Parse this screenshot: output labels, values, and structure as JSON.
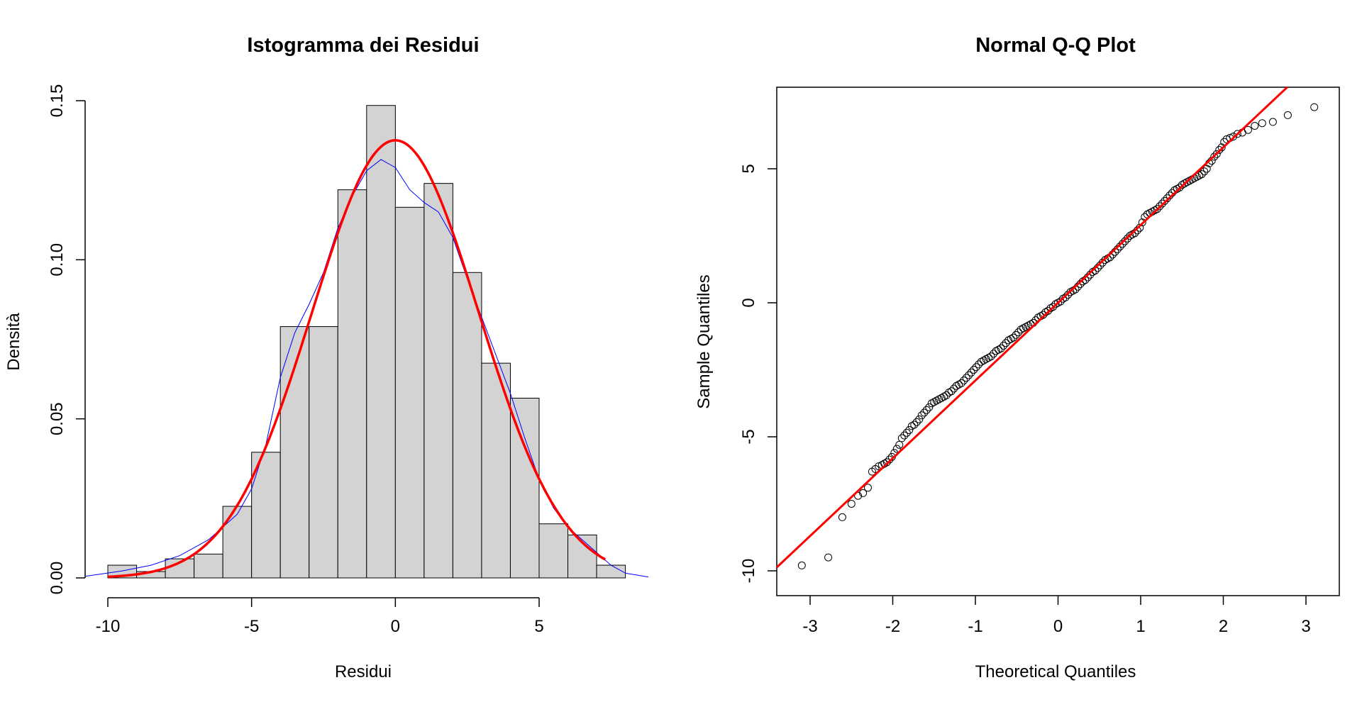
{
  "chart_data": [
    {
      "type": "histogram",
      "title": "Istogramma dei Residui",
      "xlabel": "Residui",
      "ylabel": "Densità",
      "xlim": [
        -10,
        8
      ],
      "ylim": [
        0,
        0.15
      ],
      "x_ticks": [
        -10,
        -5,
        0,
        5
      ],
      "x_tick_labels": [
        "-10",
        "-5",
        "0",
        "5"
      ],
      "y_ticks": [
        0,
        0.05,
        0.1,
        0.15
      ],
      "y_tick_labels": [
        "0.00",
        "0.05",
        "0.10",
        "0.15"
      ],
      "bins": [
        -10,
        -9,
        -8,
        -7,
        -6,
        -5,
        -4,
        -3,
        -2,
        -1,
        0,
        1,
        2,
        3,
        4,
        5,
        6,
        7,
        8
      ],
      "densities": [
        0.004,
        0.002,
        0.006,
        0.0075,
        0.0225,
        0.0395,
        0.079,
        0.079,
        0.122,
        0.1485,
        0.1165,
        0.124,
        0.096,
        0.0675,
        0.0565,
        0.017,
        0.0135,
        0.004
      ],
      "bar_color": "#d3d3d3",
      "normal_curve": {
        "mean": 0.0,
        "sd": 2.9,
        "color": "#ff0000",
        "x_range": [
          -10,
          7.3
        ]
      },
      "density_curve": {
        "color": "#0000ff",
        "points": [
          [
            -10.8,
            0.0005
          ],
          [
            -9.5,
            0.0022
          ],
          [
            -8.5,
            0.004
          ],
          [
            -7.5,
            0.007
          ],
          [
            -6.5,
            0.012
          ],
          [
            -5.5,
            0.02
          ],
          [
            -5,
            0.028
          ],
          [
            -4.5,
            0.042
          ],
          [
            -4,
            0.063
          ],
          [
            -3.5,
            0.077
          ],
          [
            -3,
            0.086
          ],
          [
            -2.5,
            0.096
          ],
          [
            -2,
            0.11
          ],
          [
            -1.5,
            0.12
          ],
          [
            -1,
            0.128
          ],
          [
            -0.5,
            0.1315
          ],
          [
            0,
            0.129
          ],
          [
            0.5,
            0.122
          ],
          [
            1,
            0.118
          ],
          [
            1.5,
            0.115
          ],
          [
            2,
            0.107
          ],
          [
            2.5,
            0.094
          ],
          [
            3,
            0.082
          ],
          [
            3.5,
            0.07
          ],
          [
            4,
            0.058
          ],
          [
            4.5,
            0.044
          ],
          [
            5,
            0.031
          ],
          [
            5.5,
            0.022
          ],
          [
            6,
            0.016
          ],
          [
            6.5,
            0.012
          ],
          [
            7,
            0.008
          ],
          [
            7.5,
            0.004
          ],
          [
            8,
            0.0015
          ],
          [
            8.8,
            0.0003
          ]
        ]
      }
    },
    {
      "type": "scatter",
      "title": "Normal Q-Q Plot",
      "xlabel": "Theoretical Quantiles",
      "ylabel": "Sample Quantiles",
      "xlim": [
        -3.2,
        3.2
      ],
      "ylim": [
        -10.3,
        7.8
      ],
      "x_ticks": [
        -3,
        -2,
        -1,
        0,
        1,
        2,
        3
      ],
      "x_tick_labels": [
        "-3",
        "-2",
        "-1",
        "0",
        "1",
        "2",
        "3"
      ],
      "y_ticks": [
        -10,
        -5,
        0,
        5
      ],
      "y_tick_labels": [
        "-10",
        "-5",
        "0",
        "5"
      ],
      "reference_line": {
        "intercept": 0,
        "slope": 2.9,
        "color": "#ff0000"
      },
      "x": [
        -3.1,
        -2.78,
        -2.61,
        -2.5,
        -2.42,
        -2.36,
        -2.3,
        -2.25,
        -2.21,
        -2.17,
        -2.13,
        -2.1,
        -2.07,
        -2.04,
        -2.01,
        -1.98,
        -1.95,
        -1.92,
        -1.89,
        -1.86,
        -1.83,
        -1.8,
        -1.77,
        -1.74,
        -1.71,
        -1.68,
        -1.65,
        -1.62,
        -1.59,
        -1.56,
        -1.53,
        -1.5,
        -1.47,
        -1.44,
        -1.41,
        -1.38,
        -1.35,
        -1.32,
        -1.29,
        -1.26,
        -1.23,
        -1.2,
        -1.17,
        -1.14,
        -1.11,
        -1.08,
        -1.05,
        -1.02,
        -0.99,
        -0.96,
        -0.93,
        -0.9,
        -0.87,
        -0.84,
        -0.81,
        -0.78,
        -0.75,
        -0.72,
        -0.69,
        -0.66,
        -0.63,
        -0.6,
        -0.57,
        -0.54,
        -0.51,
        -0.48,
        -0.45,
        -0.42,
        -0.39,
        -0.36,
        -0.33,
        -0.3,
        -0.27,
        -0.24,
        -0.21,
        -0.18,
        -0.15,
        -0.12,
        -0.09,
        -0.06,
        -0.03,
        0,
        0.03,
        0.06,
        0.09,
        0.12,
        0.15,
        0.18,
        0.21,
        0.24,
        0.27,
        0.3,
        0.33,
        0.36,
        0.39,
        0.42,
        0.45,
        0.48,
        0.51,
        0.54,
        0.57,
        0.6,
        0.63,
        0.66,
        0.69,
        0.72,
        0.75,
        0.78,
        0.81,
        0.84,
        0.87,
        0.9,
        0.93,
        0.96,
        0.99,
        1.02,
        1.05,
        1.08,
        1.11,
        1.14,
        1.17,
        1.2,
        1.23,
        1.26,
        1.29,
        1.32,
        1.35,
        1.38,
        1.41,
        1.44,
        1.47,
        1.5,
        1.53,
        1.56,
        1.59,
        1.62,
        1.65,
        1.68,
        1.71,
        1.74,
        1.77,
        1.8,
        1.83,
        1.86,
        1.89,
        1.92,
        1.95,
        1.98,
        2.01,
        2.04,
        2.08,
        2.12,
        2.17,
        2.23,
        2.3,
        2.38,
        2.47,
        2.6,
        2.78,
        3.1
      ],
      "y": [
        -9.8,
        -9.5,
        -8,
        -7.5,
        -7.2,
        -7.1,
        -6.9,
        -6.3,
        -6.2,
        -6.1,
        -6.05,
        -6,
        -5.95,
        -5.85,
        -5.75,
        -5.6,
        -5.45,
        -5.3,
        -5.05,
        -4.95,
        -4.85,
        -4.75,
        -4.6,
        -4.55,
        -4.45,
        -4.35,
        -4.2,
        -4.1,
        -4.0,
        -3.9,
        -3.75,
        -3.7,
        -3.65,
        -3.6,
        -3.55,
        -3.5,
        -3.45,
        -3.35,
        -3.3,
        -3.2,
        -3.1,
        -3.05,
        -3.0,
        -2.9,
        -2.8,
        -2.7,
        -2.6,
        -2.5,
        -2.4,
        -2.3,
        -2.2,
        -2.15,
        -2.1,
        -2.05,
        -2.0,
        -1.9,
        -1.8,
        -1.75,
        -1.7,
        -1.6,
        -1.5,
        -1.4,
        -1.35,
        -1.3,
        -1.2,
        -1.1,
        -1.0,
        -0.95,
        -0.9,
        -0.85,
        -0.8,
        -0.75,
        -0.65,
        -0.55,
        -0.5,
        -0.45,
        -0.35,
        -0.3,
        -0.2,
        -0.15,
        -0.05,
        0.0,
        0.05,
        0.15,
        0.2,
        0.3,
        0.4,
        0.45,
        0.5,
        0.6,
        0.7,
        0.8,
        0.85,
        0.95,
        1.05,
        1.15,
        1.2,
        1.3,
        1.4,
        1.5,
        1.6,
        1.65,
        1.7,
        1.8,
        1.9,
        2.0,
        2.1,
        2.2,
        2.3,
        2.4,
        2.5,
        2.55,
        2.6,
        2.7,
        2.8,
        3.0,
        3.2,
        3.3,
        3.35,
        3.4,
        3.45,
        3.5,
        3.6,
        3.7,
        3.8,
        3.9,
        4.0,
        4.1,
        4.2,
        4.25,
        4.3,
        4.4,
        4.45,
        4.5,
        4.55,
        4.6,
        4.65,
        4.7,
        4.75,
        4.8,
        4.9,
        5.0,
        5.2,
        5.3,
        5.45,
        5.55,
        5.7,
        5.8,
        6.0,
        6.1,
        6.15,
        6.2,
        6.3,
        6.35,
        6.45,
        6.6,
        6.7,
        6.75,
        7.0,
        7.3
      ]
    }
  ]
}
